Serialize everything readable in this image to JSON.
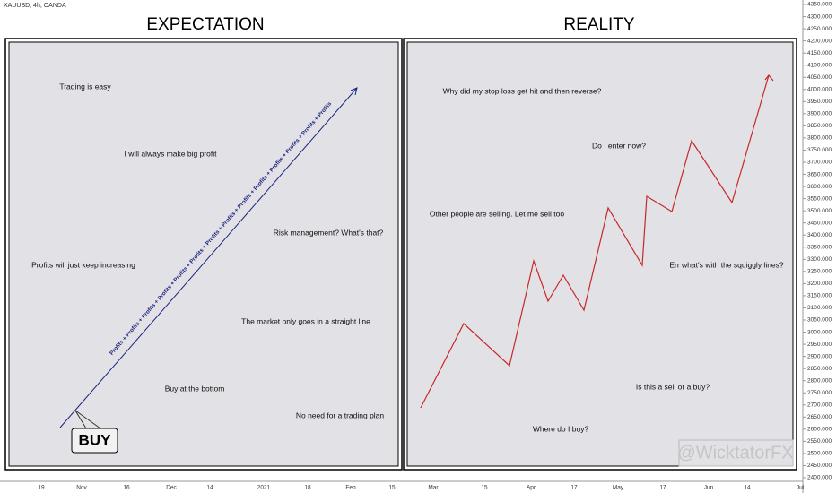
{
  "header": {
    "symbol": "XAUUSD, 4h, OANDA"
  },
  "panels": [
    {
      "title": "EXPECTATION",
      "notes": [
        "Trading is easy",
        "I will always make big profit",
        "Risk management? What's that?",
        "Profits will just keep increasing",
        "The market only goes in a straight line",
        "Buy at the bottom",
        "No need for a trading plan"
      ],
      "arrow_label": "Profits + Profits + Profits + Profits + Profits + Profits + Profits + Profits + Profits + Profits + Profits + Profits + Profits + Profits",
      "buy": "BUY"
    },
    {
      "title": "REALITY",
      "notes": [
        "Why did my stop loss get hit and then reverse?",
        "Do I enter now?",
        "Other people are selling. Let me sell too",
        "Err what's with the squiggly lines?",
        "Is this a sell or a buy?",
        "Where do I buy?"
      ],
      "watermark": "@WicktatorFX"
    }
  ],
  "price_axis": [
    "4350.000",
    "4300.000",
    "4250.000",
    "4200.000",
    "4150.000",
    "4100.000",
    "4050.000",
    "4000.000",
    "3950.000",
    "3900.000",
    "3850.000",
    "3800.000",
    "3750.000",
    "3700.000",
    "3650.000",
    "3600.000",
    "3550.000",
    "3500.000",
    "3450.000",
    "3400.000",
    "3350.000",
    "3300.000",
    "3250.000",
    "3200.000",
    "3150.000",
    "3100.000",
    "3050.000",
    "3000.000",
    "2950.000",
    "2900.000",
    "2850.000",
    "2800.000",
    "2750.000",
    "2700.000",
    "2650.000",
    "2600.000",
    "2550.000",
    "2500.000",
    "2450.000",
    "2400.000"
  ],
  "time_axis": [
    "19",
    "Nov",
    "16",
    "Dec",
    "14",
    "2021",
    "18",
    "Feb",
    "15",
    "Mar",
    "15",
    "Apr",
    "17",
    "May",
    "17",
    "Jun",
    "14",
    "Jul"
  ]
}
